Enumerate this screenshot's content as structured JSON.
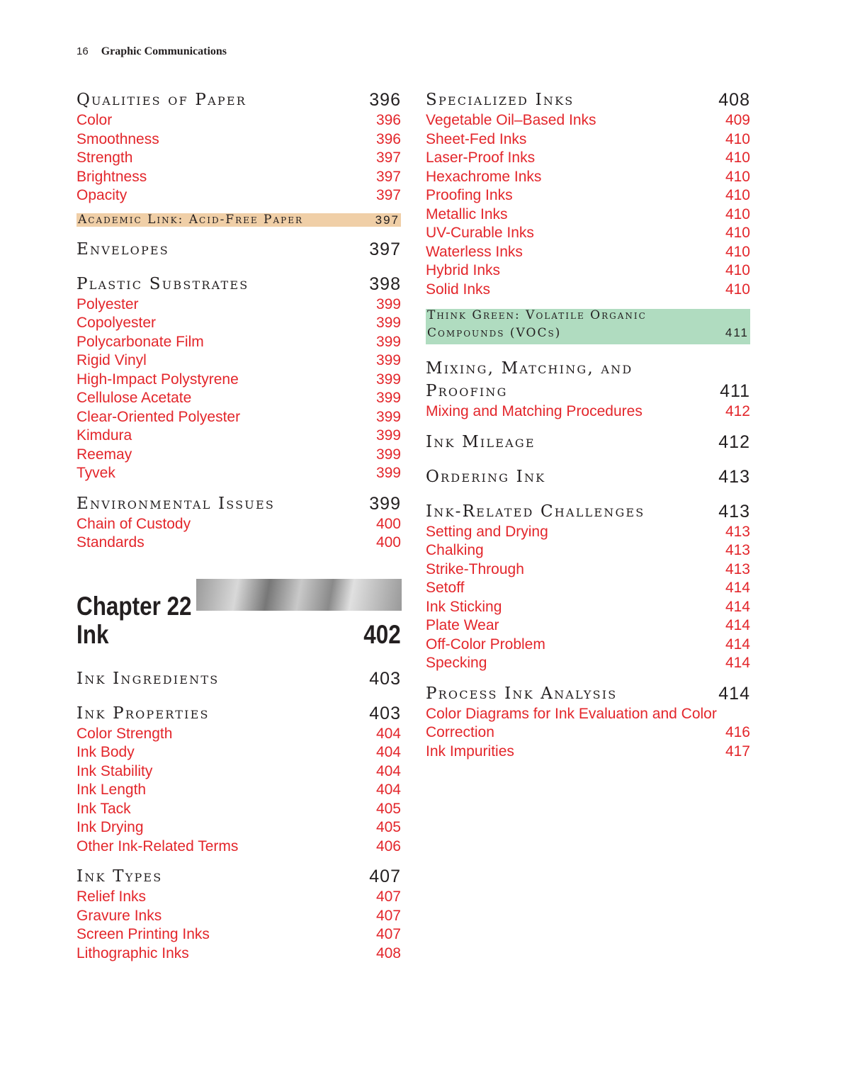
{
  "running_head": {
    "page": "16",
    "title": "Graphic Communications"
  },
  "left": {
    "s1": {
      "title": "Qualities of Paper",
      "page": "396",
      "items": [
        [
          "Color",
          "396"
        ],
        [
          "Smoothness",
          "396"
        ],
        [
          "Strength",
          "397"
        ],
        [
          "Brightness",
          "397"
        ],
        [
          "Opacity",
          "397"
        ]
      ]
    },
    "academic": {
      "title": "Academic Link: Acid-Free Paper",
      "page": "397"
    },
    "s2": {
      "title": "Envelopes",
      "page": "397"
    },
    "s3": {
      "title": "Plastic Substrates",
      "page": "398",
      "items": [
        [
          "Polyester",
          "399"
        ],
        [
          "Copolyester",
          "399"
        ],
        [
          "Polycarbonate Film",
          "399"
        ],
        [
          "Rigid Vinyl",
          "399"
        ],
        [
          "High-Impact Polystyrene",
          "399"
        ],
        [
          "Cellulose Acetate",
          "399"
        ],
        [
          "Clear-Oriented Polyester",
          "399"
        ],
        [
          "Kimdura",
          "399"
        ],
        [
          "Reemay",
          "399"
        ],
        [
          "Tyvek",
          "399"
        ]
      ]
    },
    "s4": {
      "title": "Environmental Issues",
      "page": "399",
      "items": [
        [
          "Chain of Custody",
          "400"
        ],
        [
          "Standards",
          "400"
        ]
      ]
    },
    "chapter": {
      "label": "Chapter 22",
      "title": "Ink",
      "page": "402"
    },
    "s5": {
      "title": "Ink Ingredients",
      "page": "403"
    },
    "s6": {
      "title": "Ink Properties",
      "page": "403",
      "items": [
        [
          "Color Strength",
          "404"
        ],
        [
          "Ink Body",
          "404"
        ],
        [
          "Ink Stability",
          "404"
        ],
        [
          "Ink Length",
          "404"
        ],
        [
          "Ink Tack",
          "405"
        ],
        [
          "Ink Drying",
          "405"
        ],
        [
          "Other Ink-Related Terms",
          "406"
        ]
      ]
    },
    "s7": {
      "title": "Ink Types",
      "page": "407",
      "items": [
        [
          "Relief Inks",
          "407"
        ],
        [
          "Gravure Inks",
          "407"
        ],
        [
          "Screen Printing Inks",
          "407"
        ],
        [
          "Lithographic Inks",
          "408"
        ]
      ]
    }
  },
  "right": {
    "s1": {
      "title": "Specialized Inks",
      "page": "408",
      "items": [
        [
          "Vegetable Oil–Based Inks",
          "409"
        ],
        [
          "Sheet-Fed Inks",
          "410"
        ],
        [
          "Laser-Proof Inks",
          "410"
        ],
        [
          "Hexachrome Inks",
          "410"
        ],
        [
          "Proofing Inks",
          "410"
        ],
        [
          "Metallic Inks",
          "410"
        ],
        [
          "UV-Curable Inks",
          "410"
        ],
        [
          "Waterless Inks",
          "410"
        ],
        [
          "Hybrid Inks",
          "410"
        ],
        [
          "Solid Inks",
          "410"
        ]
      ]
    },
    "green": {
      "line1": "Think Green: Volatile Organic",
      "line2": "Compounds (VOCs)",
      "page": "411"
    },
    "s2": {
      "title1": "Mixing, Matching, and",
      "title2": "Proofing",
      "page": "411",
      "items": [
        [
          "Mixing and Matching Procedures",
          "412"
        ]
      ]
    },
    "s3": {
      "title": "Ink Mileage",
      "page": "412"
    },
    "s4": {
      "title": "Ordering Ink",
      "page": "413"
    },
    "s5": {
      "title": "Ink-Related Challenges",
      "page": "413",
      "items": [
        [
          "Setting and Drying",
          "413"
        ],
        [
          "Chalking",
          "413"
        ],
        [
          "Strike-Through",
          "413"
        ],
        [
          "Setoff",
          "414"
        ],
        [
          "Ink Sticking",
          "414"
        ],
        [
          "Plate Wear",
          "414"
        ],
        [
          "Off-Color Problem",
          "414"
        ],
        [
          "Specking",
          "414"
        ]
      ]
    },
    "s6": {
      "title": "Process Ink Analysis",
      "page": "414",
      "items_multiline": {
        "line1": "Color Diagrams for Ink Evaluation and Color",
        "line2": "Correction",
        "page": "416"
      },
      "items": [
        [
          "Ink Impurities",
          "417"
        ]
      ]
    }
  },
  "colors": {
    "link": "#e3262b",
    "academic_bg": "#f0cfa7",
    "green_bg": "#b0dcc0"
  }
}
